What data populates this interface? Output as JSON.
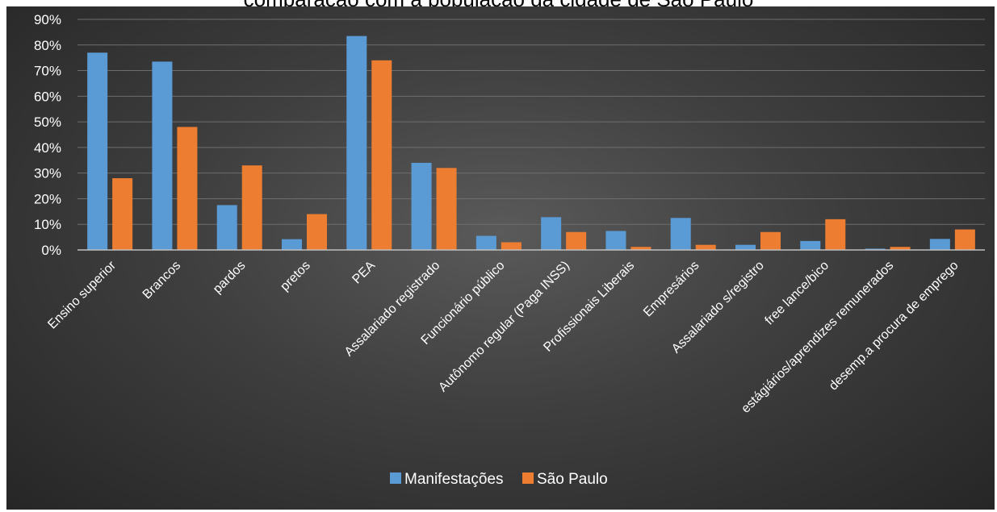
{
  "chart_data": {
    "type": "bar",
    "title": "comparação com a população da cidade de São Paulo",
    "xlabel": "",
    "ylabel": "",
    "ylim": [
      0,
      0.9
    ],
    "yticks": [
      "0%",
      "10%",
      "20%",
      "30%",
      "40%",
      "50%",
      "60%",
      "70%",
      "80%",
      "90%"
    ],
    "grid": true,
    "legend_position": "bottom",
    "categories": [
      "Ensino superior",
      "Brancos",
      "pardos",
      "pretos",
      "PEA",
      "Assalariado registrado",
      "Funcionário público",
      "Autônomo regular (Paga INSS)",
      "Profissionais Liberais",
      "Empresários",
      "Assalariado s/registro",
      "free lance/bico",
      "estágiários/aprendizes remunerados",
      "desemp.a procura de emprego"
    ],
    "series": [
      {
        "name": "Manifestações",
        "color": "#5b9bd5",
        "values": [
          0.77,
          0.735,
          0.175,
          0.042,
          0.835,
          0.34,
          0.055,
          0.128,
          0.074,
          0.125,
          0.02,
          0.035,
          0.005,
          0.043
        ]
      },
      {
        "name": "São Paulo",
        "color": "#ed7d31",
        "values": [
          0.28,
          0.48,
          0.33,
          0.14,
          0.74,
          0.32,
          0.03,
          0.07,
          0.012,
          0.02,
          0.07,
          0.12,
          0.012,
          0.08
        ]
      }
    ]
  }
}
